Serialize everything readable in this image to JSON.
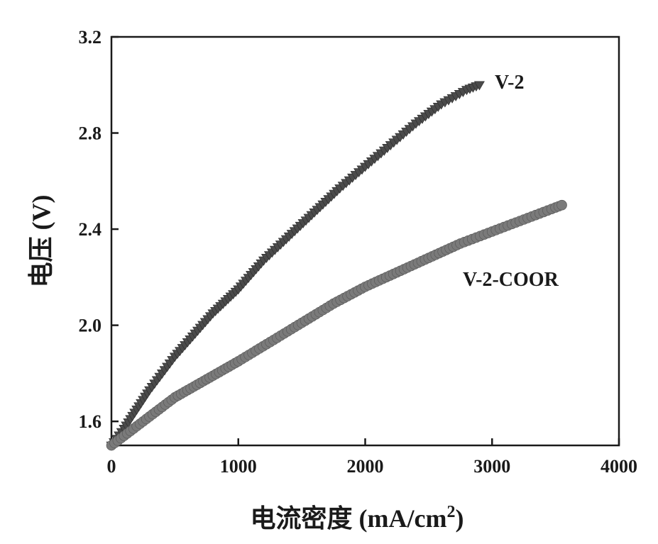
{
  "chart_data": {
    "type": "scatter",
    "xlabel": "电流密度 (mA/cm",
    "xlabel_sup": "2",
    "xlabel_close": ")",
    "ylabel": "电压 (V)",
    "xlim": [
      0,
      4000
    ],
    "ylim": [
      1.5,
      3.2
    ],
    "x_ticks": [
      0,
      1000,
      2000,
      3000,
      4000
    ],
    "y_ticks": [
      1.6,
      2.0,
      2.4,
      2.8,
      3.2
    ],
    "x_tick_labels": [
      "0",
      "1000",
      "2000",
      "3000",
      "4000"
    ],
    "y_tick_labels": [
      "1.6",
      "2.0",
      "2.4",
      "2.8",
      "3.2"
    ],
    "grid": false,
    "series": [
      {
        "name": "V-2",
        "color": "#4a4a4a",
        "marker": "triangle-down",
        "x": [
          0,
          100,
          200,
          300,
          400,
          500,
          600,
          700,
          800,
          900,
          1000,
          1200,
          1400,
          1600,
          1800,
          2000,
          2200,
          2400,
          2600,
          2800,
          2900
        ],
        "y": [
          1.5,
          1.57,
          1.65,
          1.73,
          1.8,
          1.87,
          1.93,
          1.99,
          2.05,
          2.1,
          2.15,
          2.27,
          2.37,
          2.47,
          2.57,
          2.66,
          2.75,
          2.84,
          2.92,
          2.98,
          3.0
        ]
      },
      {
        "name": "V-2-COOR",
        "color": "#7a7a7a",
        "marker": "circle",
        "x": [
          0,
          100,
          200,
          300,
          400,
          500,
          600,
          700,
          800,
          900,
          1000,
          1250,
          1500,
          1750,
          2000,
          2250,
          2500,
          2750,
          3000,
          3250,
          3500,
          3550
        ],
        "y": [
          1.5,
          1.54,
          1.58,
          1.62,
          1.66,
          1.7,
          1.73,
          1.76,
          1.79,
          1.82,
          1.85,
          1.93,
          2.01,
          2.09,
          2.16,
          2.22,
          2.28,
          2.34,
          2.39,
          2.44,
          2.49,
          2.5
        ]
      }
    ]
  }
}
